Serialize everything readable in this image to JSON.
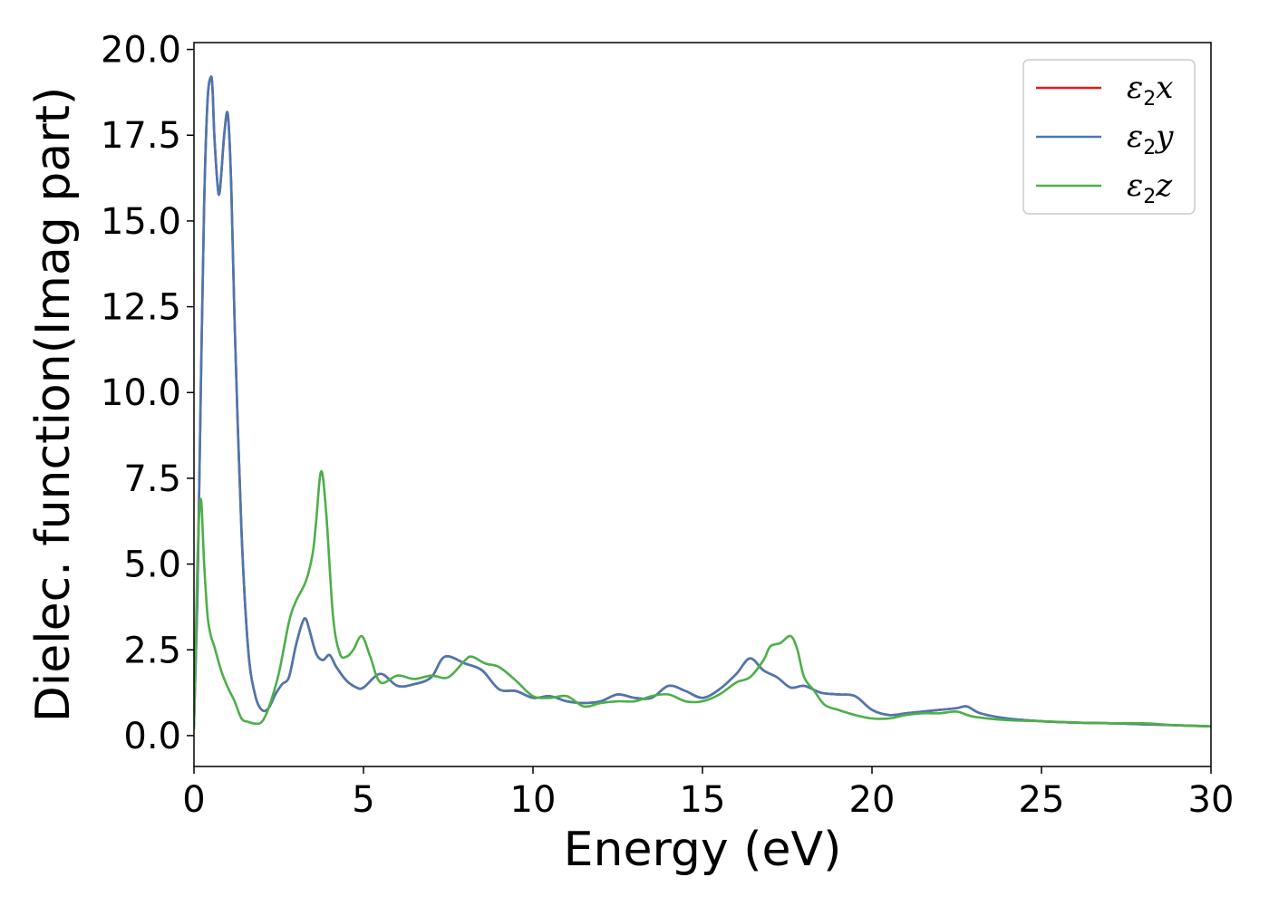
{
  "chart_data": {
    "type": "line",
    "title": "",
    "xlabel": "Energy (eV)",
    "ylabel": "Dielec. function(Imag part)",
    "xlim": [
      0,
      30
    ],
    "ylim": [
      -0.9,
      20.2
    ],
    "xticks": [
      0,
      5,
      10,
      15,
      20,
      25,
      30
    ],
    "xtick_labels": [
      "0",
      "5",
      "10",
      "15",
      "20",
      "25",
      "30"
    ],
    "yticks": [
      0.0,
      2.5,
      5.0,
      7.5,
      10.0,
      12.5,
      15.0,
      17.5,
      20.0
    ],
    "ytick_labels": [
      "0.0",
      "2.5",
      "5.0",
      "7.5",
      "10.0",
      "12.5",
      "15.0",
      "17.5",
      "20.0"
    ],
    "grid": false,
    "legend_position": "top-right",
    "series": [
      {
        "name": "ε2x",
        "legend_base": "ε",
        "legend_sub": "2",
        "legend_tail": "x",
        "color": "#e41a1c",
        "x": [
          0,
          0.1,
          0.2,
          0.3,
          0.4,
          0.5,
          0.55,
          0.6,
          0.7,
          0.75,
          0.8,
          0.9,
          1.0,
          1.1,
          1.2,
          1.4,
          1.6,
          1.8,
          2.0,
          2.2,
          2.4,
          2.6,
          2.8,
          3.0,
          3.2,
          3.3,
          3.4,
          3.6,
          3.8,
          4.0,
          4.2,
          4.5,
          4.8,
          5.0,
          5.5,
          6.0,
          6.5,
          7.0,
          7.4,
          8.0,
          8.5,
          9.0,
          9.5,
          10.0,
          10.5,
          11.0,
          11.5,
          12.0,
          12.5,
          13.0,
          13.5,
          14.0,
          14.5,
          15.0,
          15.5,
          16.0,
          16.4,
          16.8,
          17.2,
          17.6,
          18.0,
          18.5,
          19.0,
          19.5,
          20.0,
          20.5,
          21.0,
          21.5,
          22.0,
          22.5,
          22.8,
          23.2,
          24.0,
          25.0,
          26.0,
          27.0,
          28.0,
          29.0,
          30.0
        ],
        "y": [
          0.3,
          4.0,
          10.0,
          15.5,
          18.5,
          19.2,
          18.8,
          17.5,
          16.0,
          15.8,
          16.3,
          17.6,
          18.1,
          16.0,
          12.0,
          6.0,
          2.5,
          1.2,
          0.75,
          0.8,
          1.2,
          1.5,
          1.7,
          2.6,
          3.3,
          3.4,
          3.1,
          2.4,
          2.2,
          2.35,
          2.0,
          1.6,
          1.4,
          1.4,
          1.8,
          1.45,
          1.5,
          1.7,
          2.3,
          2.1,
          1.9,
          1.35,
          1.3,
          1.1,
          1.15,
          1.0,
          0.95,
          1.0,
          1.2,
          1.1,
          1.1,
          1.45,
          1.3,
          1.1,
          1.35,
          1.8,
          2.25,
          1.9,
          1.7,
          1.4,
          1.45,
          1.25,
          1.2,
          1.15,
          0.75,
          0.6,
          0.65,
          0.7,
          0.75,
          0.8,
          0.85,
          0.65,
          0.5,
          0.42,
          0.38,
          0.36,
          0.33,
          0.3,
          0.27
        ]
      },
      {
        "name": "ε2y",
        "legend_base": "ε",
        "legend_sub": "2",
        "legend_tail": "y",
        "color": "#4a78b0",
        "x": [
          0,
          0.1,
          0.2,
          0.3,
          0.4,
          0.5,
          0.55,
          0.6,
          0.7,
          0.75,
          0.8,
          0.9,
          1.0,
          1.1,
          1.2,
          1.4,
          1.6,
          1.8,
          2.0,
          2.2,
          2.4,
          2.6,
          2.8,
          3.0,
          3.2,
          3.3,
          3.4,
          3.6,
          3.8,
          4.0,
          4.2,
          4.5,
          4.8,
          5.0,
          5.5,
          6.0,
          6.5,
          7.0,
          7.4,
          8.0,
          8.5,
          9.0,
          9.5,
          10.0,
          10.5,
          11.0,
          11.5,
          12.0,
          12.5,
          13.0,
          13.5,
          14.0,
          14.5,
          15.0,
          15.5,
          16.0,
          16.4,
          16.8,
          17.2,
          17.6,
          18.0,
          18.5,
          19.0,
          19.5,
          20.0,
          20.5,
          21.0,
          21.5,
          22.0,
          22.5,
          22.8,
          23.2,
          24.0,
          25.0,
          26.0,
          27.0,
          28.0,
          29.0,
          30.0
        ],
        "y": [
          0.3,
          4.0,
          10.0,
          15.5,
          18.5,
          19.2,
          18.8,
          17.5,
          16.0,
          15.8,
          16.3,
          17.6,
          18.1,
          16.0,
          12.0,
          6.0,
          2.5,
          1.2,
          0.75,
          0.8,
          1.2,
          1.5,
          1.7,
          2.6,
          3.3,
          3.4,
          3.1,
          2.4,
          2.2,
          2.35,
          2.0,
          1.6,
          1.4,
          1.4,
          1.8,
          1.45,
          1.5,
          1.7,
          2.3,
          2.1,
          1.9,
          1.35,
          1.3,
          1.1,
          1.15,
          1.0,
          0.95,
          1.0,
          1.2,
          1.1,
          1.1,
          1.45,
          1.3,
          1.1,
          1.35,
          1.8,
          2.25,
          1.9,
          1.7,
          1.4,
          1.45,
          1.25,
          1.2,
          1.15,
          0.75,
          0.6,
          0.65,
          0.7,
          0.75,
          0.8,
          0.85,
          0.65,
          0.5,
          0.42,
          0.38,
          0.36,
          0.33,
          0.3,
          0.27
        ]
      },
      {
        "name": "ε2z",
        "legend_base": "ε",
        "legend_sub": "2",
        "legend_tail": "z",
        "color": "#4daf4a",
        "x": [
          0,
          0.1,
          0.2,
          0.3,
          0.4,
          0.5,
          0.6,
          0.8,
          1.0,
          1.2,
          1.4,
          1.6,
          1.8,
          2.0,
          2.2,
          2.5,
          2.8,
          3.0,
          3.3,
          3.5,
          3.6,
          3.75,
          3.9,
          4.1,
          4.3,
          4.5,
          4.7,
          4.95,
          5.2,
          5.5,
          6.0,
          6.5,
          7.0,
          7.5,
          8.0,
          8.2,
          8.6,
          9.0,
          9.5,
          10.0,
          10.5,
          11.0,
          11.5,
          12.0,
          12.5,
          13.0,
          13.5,
          14.0,
          14.5,
          15.0,
          15.5,
          16.0,
          16.4,
          16.8,
          17.0,
          17.3,
          17.6,
          17.8,
          18.0,
          18.3,
          18.6,
          19.0,
          19.5,
          20.0,
          20.5,
          21.0,
          21.5,
          22.0,
          22.5,
          23.0,
          24.0,
          25.0,
          26.0,
          27.0,
          28.0,
          29.0,
          30.0
        ],
        "y": [
          0.2,
          5.0,
          6.9,
          5.0,
          3.5,
          2.9,
          2.6,
          1.9,
          1.4,
          1.0,
          0.5,
          0.4,
          0.35,
          0.4,
          0.8,
          1.8,
          3.3,
          3.9,
          4.5,
          5.3,
          6.2,
          7.7,
          6.5,
          3.5,
          2.4,
          2.3,
          2.5,
          2.9,
          2.3,
          1.55,
          1.75,
          1.65,
          1.75,
          1.7,
          2.2,
          2.3,
          2.1,
          2.0,
          1.6,
          1.15,
          1.1,
          1.15,
          0.85,
          0.95,
          1.0,
          1.0,
          1.15,
          1.2,
          1.0,
          1.0,
          1.2,
          1.55,
          1.7,
          2.2,
          2.6,
          2.7,
          2.9,
          2.5,
          1.7,
          1.3,
          0.9,
          0.75,
          0.6,
          0.5,
          0.5,
          0.6,
          0.65,
          0.65,
          0.7,
          0.55,
          0.45,
          0.42,
          0.38,
          0.36,
          0.36,
          0.3,
          0.27
        ]
      }
    ]
  }
}
